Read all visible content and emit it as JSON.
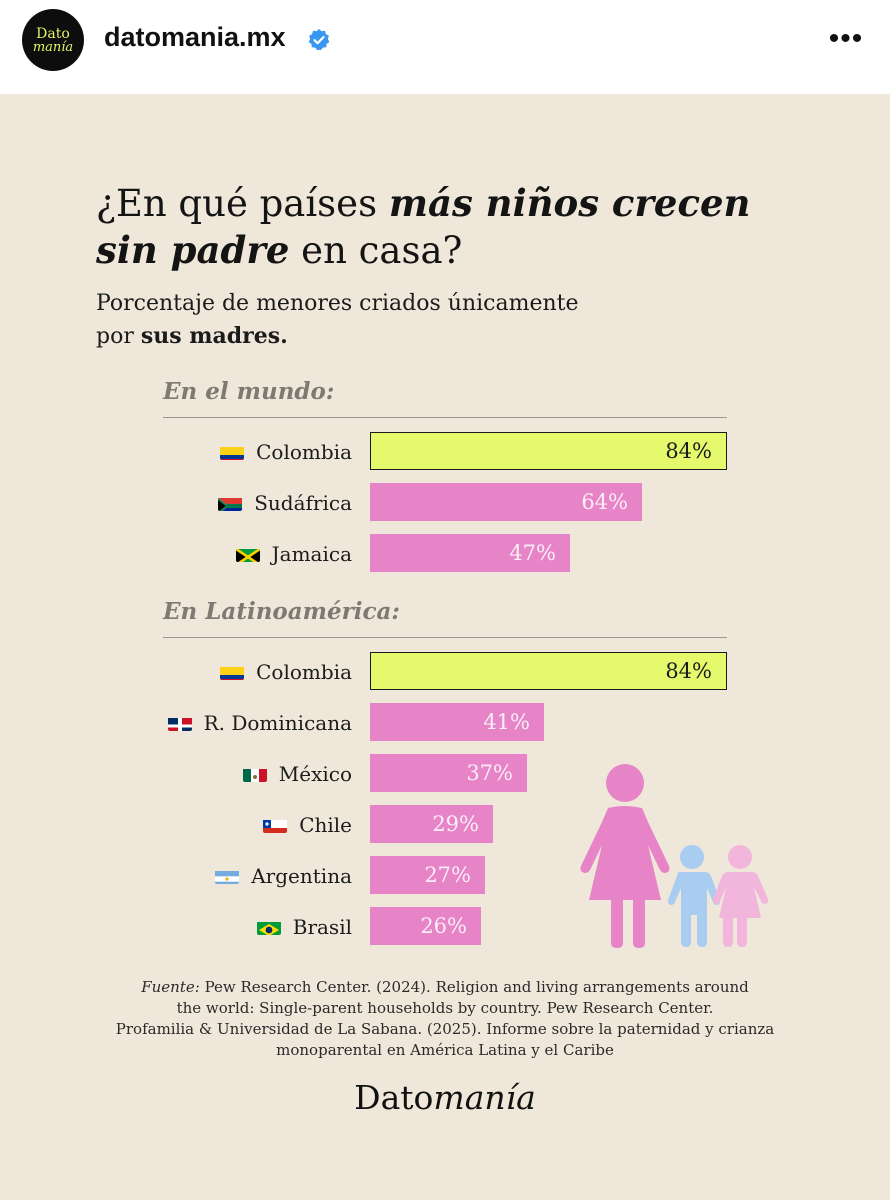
{
  "header": {
    "avatar_line1": "Dato",
    "avatar_line2": "manía",
    "username": "datomania.mx",
    "more_label": "•••"
  },
  "post": {
    "title_part1": "¿En qué países ",
    "title_bold1": "más niños crecen",
    "title_bold2": "sin padre",
    "title_part2": " en casa?",
    "subtitle_part1": "Porcentaje de menores criados únicamente",
    "subtitle_part2": "por ",
    "subtitle_bold": "sus madres.",
    "source_label": "Fuente:",
    "source_line1": " Pew Research Center. (2024). Religion and living arrangements around",
    "source_line2": "the world: Single-parent households by country. Pew Research Center.",
    "source_line3": "Profamilia & Universidad de La Sabana. (2025). Informe sobre la paternidad y crianza",
    "source_line4": "monoparental en América Latina y el Caribe",
    "logo_part1": "Dato",
    "logo_part2": "manía"
  },
  "colors": {
    "background": "#efe8da",
    "pink": "#e784c8",
    "highlight": "#e4f96c",
    "child_blue": "#a9cdf0",
    "child_pink": "#f2b6dc"
  },
  "chart_data": {
    "type": "bar",
    "orientation": "horizontal",
    "unit": "%",
    "xlim": [
      0,
      100
    ],
    "groups": [
      {
        "title": "En el mundo:",
        "categories": [
          "Colombia",
          "Sudáfrica",
          "Jamaica"
        ],
        "flags": [
          "colombia-flag-icon",
          "south-africa-flag-icon",
          "jamaica-flag-icon"
        ],
        "values": [
          84,
          64,
          47
        ],
        "labels": [
          "84%",
          "64%",
          "47%"
        ],
        "highlight": [
          true,
          false,
          false
        ]
      },
      {
        "title": "En Latinoamérica:",
        "categories": [
          "Colombia",
          "R. Dominicana",
          "México",
          "Chile",
          "Argentina",
          "Brasil"
        ],
        "flags": [
          "colombia-flag-icon",
          "dominican-republic-flag-icon",
          "mexico-flag-icon",
          "chile-flag-icon",
          "argentina-flag-icon",
          "brazil-flag-icon"
        ],
        "values": [
          84,
          41,
          37,
          29,
          27,
          26
        ],
        "labels": [
          "84%",
          "41%",
          "37%",
          "29%",
          "27%",
          "26%"
        ],
        "highlight": [
          true,
          false,
          false,
          false,
          false,
          false
        ]
      }
    ]
  }
}
